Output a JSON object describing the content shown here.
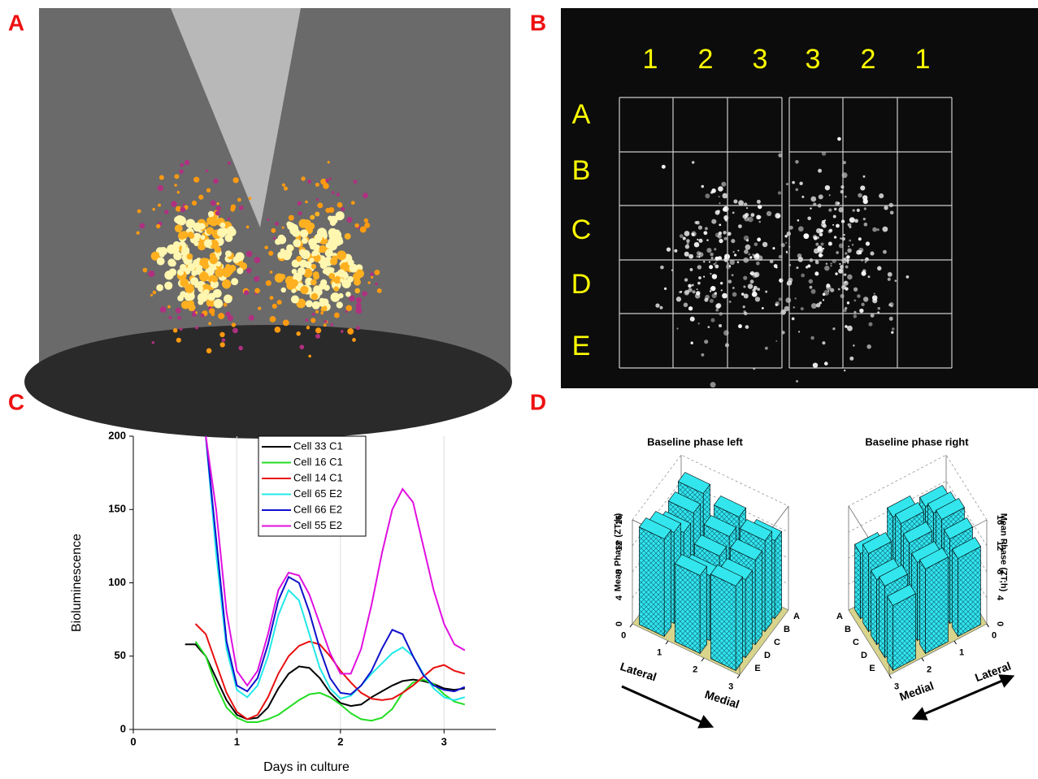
{
  "panel_labels": [
    "A",
    "B",
    "C",
    "D"
  ],
  "panel_b": {
    "column_labels": [
      "1",
      "2",
      "3",
      "3",
      "2",
      "1"
    ],
    "row_labels": [
      "A",
      "B",
      "C",
      "D",
      "E"
    ]
  },
  "chart_data": [
    {
      "type": "line",
      "x_label": "Days in culture",
      "y_label": "Bioluminescence",
      "x": [
        0.5,
        0.6,
        0.7,
        0.8,
        0.9,
        1.0,
        1.1,
        1.2,
        1.3,
        1.4,
        1.5,
        1.6,
        1.7,
        1.8,
        1.9,
        2.0,
        2.1,
        2.2,
        2.3,
        2.4,
        2.5,
        2.6,
        2.7,
        2.8,
        2.9,
        3.0,
        3.1,
        3.2
      ],
      "xlim": [
        0,
        3.5
      ],
      "xticks": [
        0,
        1,
        2,
        3
      ],
      "ylim": [
        0,
        200
      ],
      "yticks": [
        0,
        50,
        100,
        150,
        200
      ],
      "grid": "x",
      "series": [
        {
          "name": "Cell 33 C1",
          "color": "#000000",
          "values": [
            58,
            58,
            50,
            35,
            20,
            10,
            7,
            8,
            15,
            28,
            38,
            43,
            42,
            35,
            25,
            18,
            16,
            17,
            22,
            26,
            30,
            33,
            34,
            33,
            31,
            28,
            27,
            28
          ]
        },
        {
          "name": "Cell 16 C1",
          "color": "#22dd22",
          "values": [
            null,
            60,
            50,
            30,
            15,
            8,
            5,
            5,
            7,
            10,
            15,
            20,
            24,
            25,
            22,
            17,
            11,
            7,
            6,
            8,
            14,
            25,
            32,
            34,
            31,
            24,
            19,
            17
          ]
        },
        {
          "name": "Cell 14 C1",
          "color": "#e81010",
          "values": [
            null,
            72,
            65,
            45,
            25,
            12,
            7,
            10,
            22,
            38,
            50,
            57,
            60,
            58,
            50,
            40,
            32,
            25,
            21,
            20,
            21,
            25,
            30,
            36,
            42,
            44,
            40,
            38
          ]
        },
        {
          "name": "Cell 65 E2",
          "color": "#22e8e8",
          "values": [
            null,
            null,
            200,
            120,
            55,
            27,
            22,
            30,
            50,
            78,
            95,
            88,
            65,
            42,
            28,
            21,
            23,
            30,
            38,
            45,
            52,
            56,
            50,
            38,
            28,
            22,
            20,
            22
          ]
        },
        {
          "name": "Cell 66 E2",
          "color": "#1010cc",
          "values": [
            null,
            null,
            200,
            130,
            60,
            30,
            26,
            35,
            58,
            88,
            104,
            100,
            80,
            55,
            35,
            25,
            24,
            30,
            40,
            55,
            68,
            65,
            50,
            37,
            30,
            27,
            26,
            29
          ]
        },
        {
          "name": "Cell 55 E2",
          "color": "#e010e0",
          "values": [
            null,
            null,
            200,
            150,
            80,
            40,
            30,
            40,
            65,
            95,
            107,
            105,
            92,
            72,
            52,
            38,
            38,
            55,
            85,
            120,
            150,
            164,
            155,
            125,
            95,
            72,
            58,
            54
          ]
        }
      ]
    },
    {
      "type": "bar3d",
      "title": "Baseline phase left",
      "z_label": "Mean Phase (ZT;h)",
      "direction_labels": [
        "Lateral",
        "Medial"
      ],
      "categories": [
        "A",
        "B",
        "C",
        "D",
        "E"
      ],
      "xticks": [
        0,
        1,
        2,
        3
      ],
      "zlim": [
        0,
        16
      ],
      "zticks": [
        0,
        4,
        8,
        12,
        16
      ],
      "color": "#33e6ee",
      "values": [
        [
          14,
          13,
          12
        ],
        [
          13,
          12,
          14
        ],
        [
          12,
          11,
          13
        ],
        [
          14,
          10,
          12
        ],
        [
          15,
          12,
          13
        ]
      ]
    },
    {
      "type": "bar3d",
      "title": "Baseline phase right",
      "z_label": "Mean Phase (ZT;h)",
      "direction_labels": [
        "Lateral",
        "Medial"
      ],
      "categories": [
        "A",
        "B",
        "C",
        "D",
        "E"
      ],
      "xticks": [
        0,
        1,
        2,
        3
      ],
      "zlim": [
        0,
        16
      ],
      "zticks": [
        0,
        4,
        8,
        12,
        16
      ],
      "color": "#33e6ee",
      "values": [
        [
          12,
          13,
          10
        ],
        [
          13,
          14,
          12
        ],
        [
          14,
          13,
          10
        ],
        [
          13,
          12,
          11
        ],
        [
          12,
          13,
          10
        ]
      ]
    }
  ]
}
